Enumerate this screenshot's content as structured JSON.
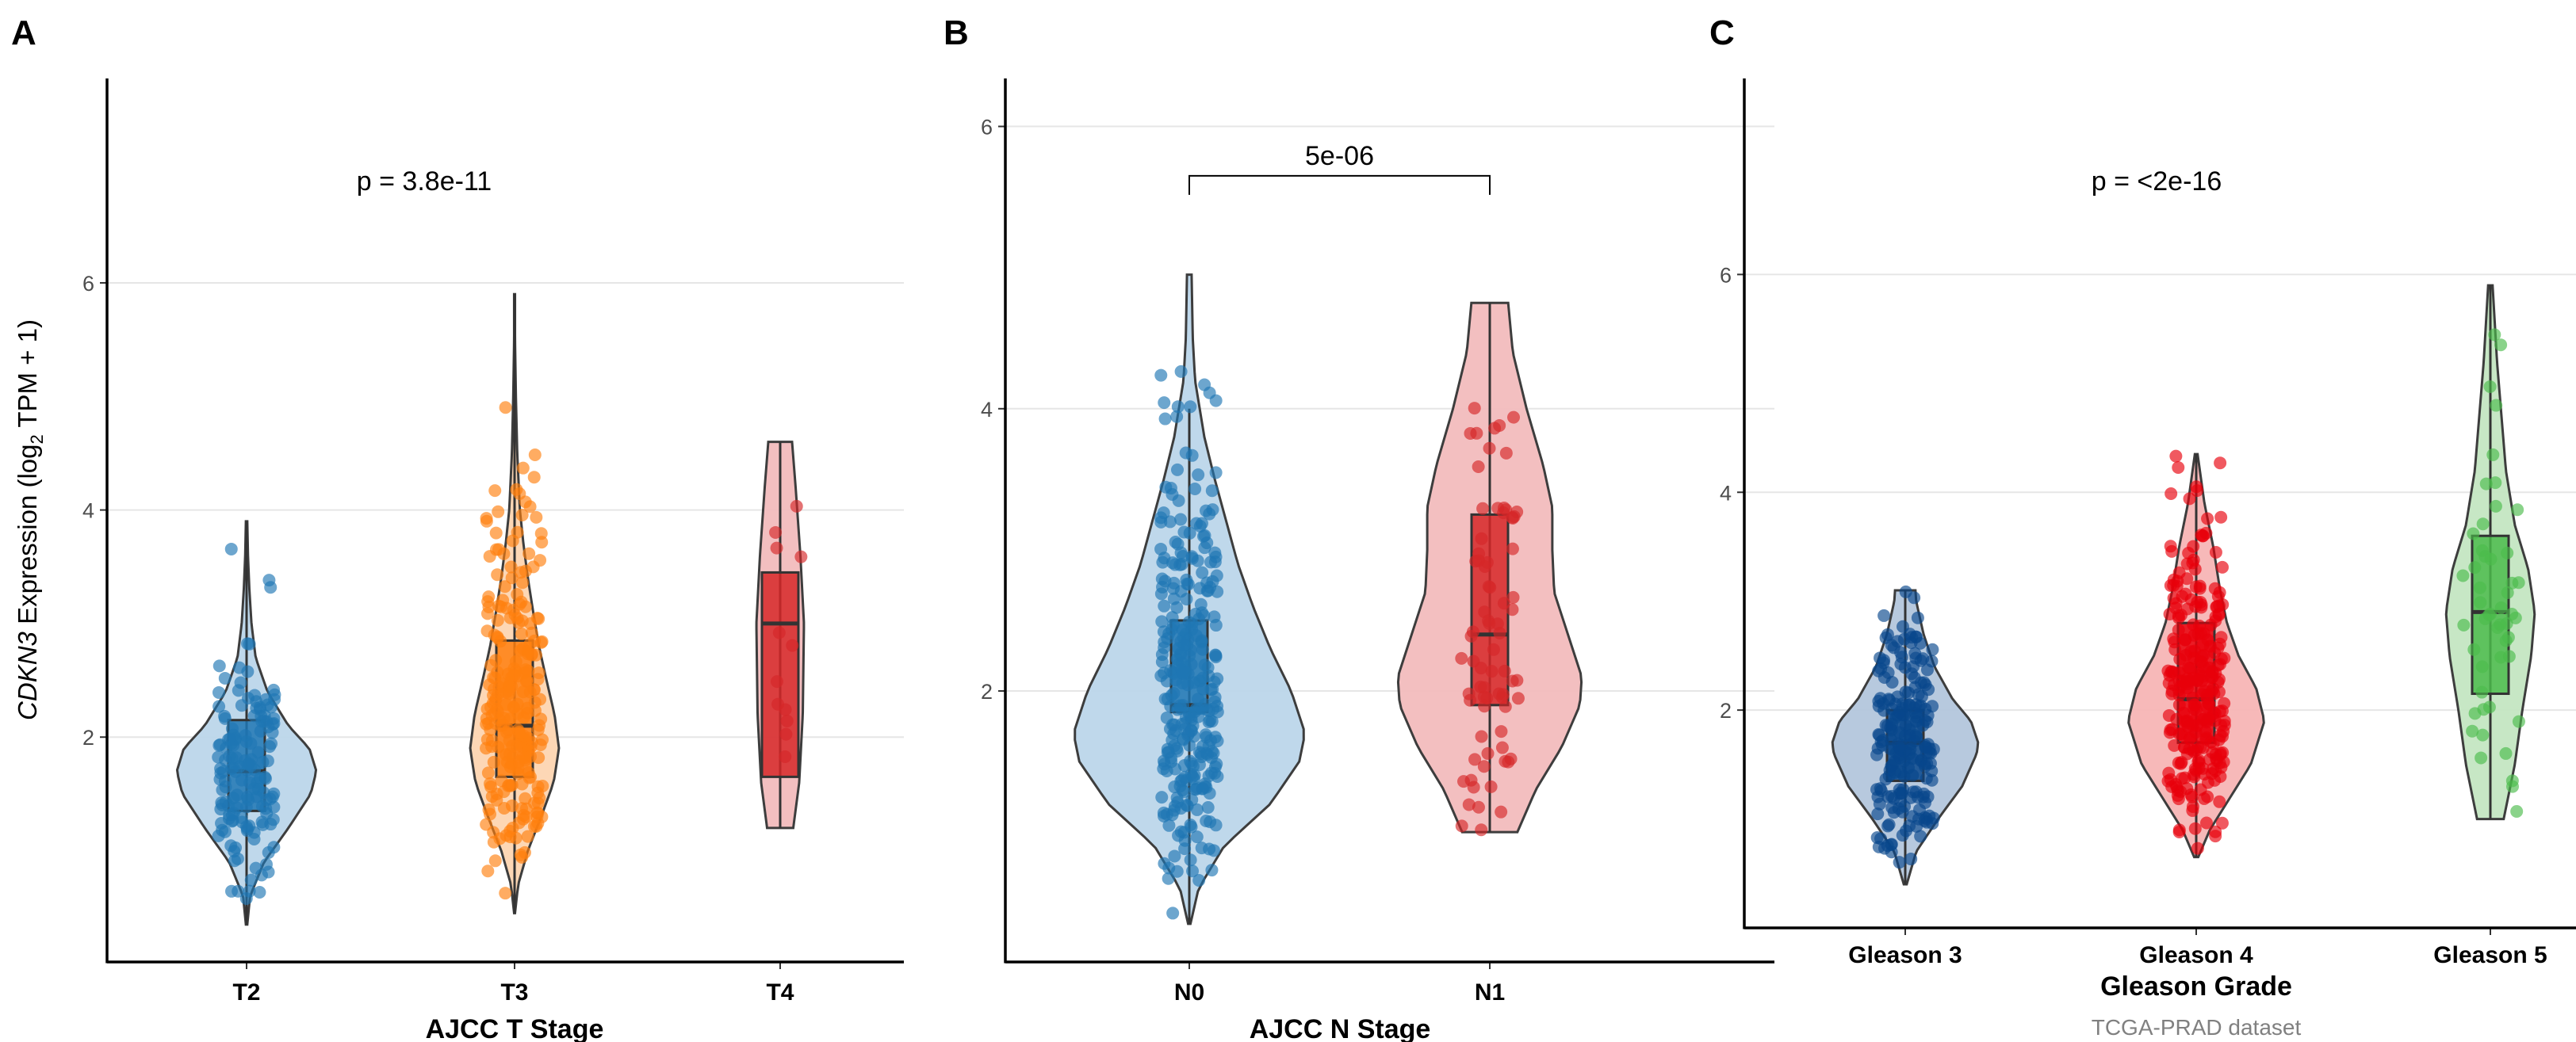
{
  "figure": {
    "ylabel_gene": "CDKN3",
    "ylabel_mid": " Expression (log",
    "ylabel_sub": "2",
    "ylabel_end": " TPM + 1)",
    "caption": "TCGA-PRAD dataset"
  },
  "chart_data": [
    {
      "panel": "A",
      "type": "violin",
      "xlabel": "AJCC T Stage",
      "ylabel": "CDKN3 Expression (log2 TPM + 1)",
      "ylim": [
        0.02,
        7.8
      ],
      "yticks": [
        2,
        4,
        6
      ],
      "grid": "horizontal major",
      "annotation": {
        "text": "p = 3.8e-11",
        "kind": "global",
        "y": 6.9
      },
      "groups": [
        {
          "name": "T2",
          "n": 150,
          "color": "#1f77b4",
          "fill": "#bcd6ea",
          "stats": {
            "min": 0.35,
            "q1": 1.35,
            "median": 1.7,
            "q3": 2.15,
            "max": 3.9,
            "whisker_low": 0.35,
            "whisker_high": 3.9
          },
          "density": [
            [
              0.35,
              0.01
            ],
            [
              0.6,
              0.05
            ],
            [
              0.9,
              0.25
            ],
            [
              1.2,
              0.6
            ],
            [
              1.5,
              0.92
            ],
            [
              1.7,
              1
            ],
            [
              1.9,
              0.9
            ],
            [
              2.1,
              0.6
            ],
            [
              2.4,
              0.3
            ],
            [
              2.7,
              0.13
            ],
            [
              3.0,
              0.07
            ],
            [
              3.3,
              0.04
            ],
            [
              3.6,
              0.02
            ],
            [
              3.9,
              0.01
            ]
          ]
        },
        {
          "name": "T3",
          "n": 240,
          "color": "#ff7f0e",
          "fill": "#fdd5b1",
          "stats": {
            "min": 0.45,
            "q1": 1.65,
            "median": 2.1,
            "q3": 2.85,
            "max": 5.9,
            "whisker_low": 0.45,
            "whisker_high": 5.9
          },
          "density": [
            [
              0.45,
              0.01
            ],
            [
              0.7,
              0.08
            ],
            [
              1.0,
              0.3
            ],
            [
              1.3,
              0.6
            ],
            [
              1.6,
              0.88
            ],
            [
              1.9,
              1
            ],
            [
              2.2,
              0.9
            ],
            [
              2.5,
              0.72
            ],
            [
              2.8,
              0.55
            ],
            [
              3.1,
              0.42
            ],
            [
              3.4,
              0.3
            ],
            [
              3.7,
              0.2
            ],
            [
              4.0,
              0.12
            ],
            [
              4.5,
              0.06
            ],
            [
              5.0,
              0.03
            ],
            [
              5.5,
              0.01
            ],
            [
              5.9,
              0.01
            ]
          ]
        },
        {
          "name": "T4",
          "n": 12,
          "color": "#d62728",
          "fill": "#f2bcbd",
          "stats": {
            "min": 1.2,
            "q1": 1.65,
            "median": 3.0,
            "q3": 3.45,
            "max": 4.6,
            "whisker_low": 1.2,
            "whisker_high": 4.6
          },
          "density": [
            [
              1.2,
              0.55
            ],
            [
              1.6,
              0.8
            ],
            [
              2.2,
              0.95
            ],
            [
              3.0,
              1
            ],
            [
              3.6,
              0.85
            ],
            [
              4.2,
              0.65
            ],
            [
              4.6,
              0.5
            ]
          ]
        }
      ]
    },
    {
      "panel": "B",
      "type": "violin",
      "xlabel": "AJCC N Stage",
      "ylim": [
        0.08,
        6.34
      ],
      "yticks": [
        2,
        4,
        6
      ],
      "grid": "horizontal major",
      "annotation": {
        "text": "5e-06",
        "kind": "bracket",
        "y": 5.65,
        "from": "N0",
        "to": "N1"
      },
      "groups": [
        {
          "name": "N0",
          "n": 300,
          "color": "#1f77b4",
          "fill": "#bcd6ea",
          "stats": {
            "min": 0.35,
            "q1": 1.85,
            "median": 1.9,
            "q3": 2.5,
            "max": 4.95,
            "whisker_low": 0.35,
            "whisker_high": 4.0
          },
          "density": [
            [
              0.35,
              0.01
            ],
            [
              0.6,
              0.08
            ],
            [
              0.9,
              0.3
            ],
            [
              1.2,
              0.7
            ],
            [
              1.5,
              0.95
            ],
            [
              1.7,
              1
            ],
            [
              2.0,
              0.88
            ],
            [
              2.3,
              0.7
            ],
            [
              2.6,
              0.55
            ],
            [
              2.9,
              0.42
            ],
            [
              3.2,
              0.32
            ],
            [
              3.5,
              0.22
            ],
            [
              3.8,
              0.13
            ],
            [
              4.2,
              0.05
            ],
            [
              4.5,
              0.03
            ],
            [
              4.95,
              0.02
            ]
          ]
        },
        {
          "name": "N1",
          "n": 75,
          "color": "#d62728",
          "fill": "#f2bcbd",
          "stats": {
            "min": 1.0,
            "q1": 1.9,
            "median": 2.4,
            "q3": 3.25,
            "max": 4.75,
            "whisker_low": 1.0,
            "whisker_high": 4.75
          },
          "density": [
            [
              1.0,
              0.3
            ],
            [
              1.3,
              0.5
            ],
            [
              1.6,
              0.78
            ],
            [
              1.9,
              0.98
            ],
            [
              2.1,
              1
            ],
            [
              2.4,
              0.85
            ],
            [
              2.7,
              0.7
            ],
            [
              3.0,
              0.68
            ],
            [
              3.3,
              0.68
            ],
            [
              3.6,
              0.58
            ],
            [
              4.0,
              0.4
            ],
            [
              4.4,
              0.25
            ],
            [
              4.75,
              0.2
            ]
          ]
        }
      ]
    },
    {
      "panel": "C",
      "type": "violin",
      "xlabel": "Gleason Grade",
      "ylim": [
        0.0,
        7.8
      ],
      "yticks": [
        2,
        4,
        6
      ],
      "grid": "horizontal major",
      "annotation": {
        "text": "p = <2e-16",
        "kind": "global",
        "y": 6.86
      },
      "groups": [
        {
          "name": "Gleason 3",
          "n": 200,
          "color": "#08478c",
          "fill": "#b3c6dc",
          "stats": {
            "min": 0.4,
            "q1": 1.35,
            "median": 1.7,
            "q3": 2.0,
            "max": 3.1,
            "whisker_low": 0.4,
            "whisker_high": 3.1
          },
          "density": [
            [
              0.4,
              0.02
            ],
            [
              0.7,
              0.15
            ],
            [
              1.0,
              0.45
            ],
            [
              1.3,
              0.78
            ],
            [
              1.6,
              0.98
            ],
            [
              1.7,
              1
            ],
            [
              1.9,
              0.9
            ],
            [
              2.1,
              0.65
            ],
            [
              2.4,
              0.4
            ],
            [
              2.7,
              0.25
            ],
            [
              3.0,
              0.15
            ],
            [
              3.1,
              0.14
            ]
          ]
        },
        {
          "name": "Gleason 4",
          "n": 260,
          "color": "#e8000b",
          "fill": "#f7b5b5",
          "stats": {
            "min": 0.65,
            "q1": 1.7,
            "median": 2.1,
            "q3": 2.8,
            "max": 4.35,
            "whisker_low": 0.65,
            "whisker_high": 4.35
          },
          "density": [
            [
              0.65,
              0.03
            ],
            [
              0.9,
              0.2
            ],
            [
              1.2,
              0.5
            ],
            [
              1.5,
              0.8
            ],
            [
              1.9,
              1
            ],
            [
              2.2,
              0.88
            ],
            [
              2.5,
              0.62
            ],
            [
              2.8,
              0.45
            ],
            [
              3.1,
              0.35
            ],
            [
              3.5,
              0.25
            ],
            [
              3.9,
              0.12
            ],
            [
              4.35,
              0.02
            ]
          ]
        },
        {
          "name": "Gleason 5",
          "n": 50,
          "color": "#4bbb4b",
          "fill": "#c4e6c2",
          "stats": {
            "min": 1.0,
            "q1": 2.15,
            "median": 2.9,
            "q3": 3.6,
            "max": 5.9,
            "whisker_low": 1.0,
            "whisker_high": 5.9
          },
          "density": [
            [
              1.0,
              0.3
            ],
            [
              1.5,
              0.55
            ],
            [
              2.0,
              0.72
            ],
            [
              2.5,
              0.92
            ],
            [
              2.9,
              1
            ],
            [
              3.3,
              0.85
            ],
            [
              3.7,
              0.55
            ],
            [
              4.2,
              0.35
            ],
            [
              4.7,
              0.25
            ],
            [
              5.2,
              0.15
            ],
            [
              5.9,
              0.05
            ]
          ]
        }
      ]
    }
  ]
}
